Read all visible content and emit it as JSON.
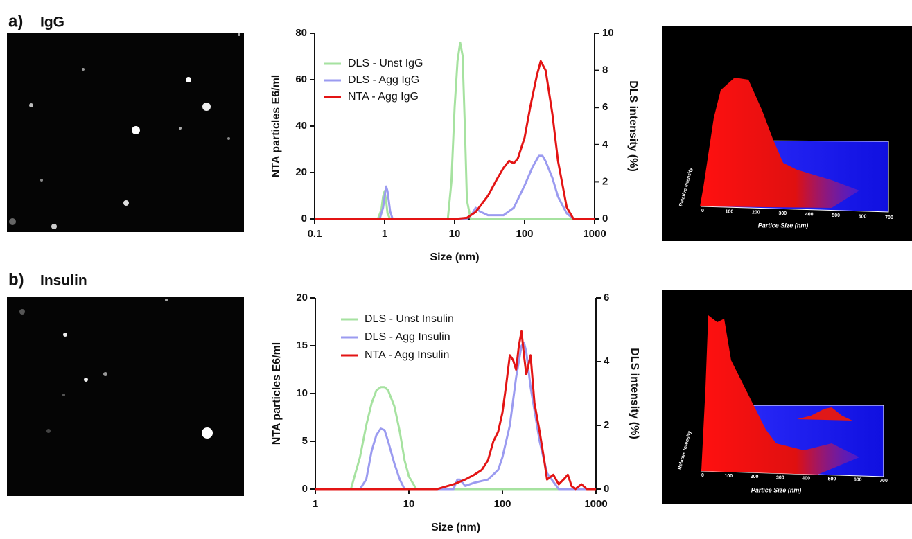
{
  "panels": [
    {
      "label": "a)",
      "title": "IgG",
      "plot3d": {
        "xlabel": "Partice Size (nm)",
        "ylabel": "Relative Intensity",
        "xticks": [
          0,
          100,
          200,
          300,
          400,
          500,
          600,
          700
        ]
      }
    },
    {
      "label": "b)",
      "title": "Insulin",
      "plot3d": {
        "xlabel": "Partice Size (nm)",
        "ylabel": "Relative Intensity",
        "xticks": [
          0,
          100,
          200,
          300,
          400,
          500,
          600,
          700
        ]
      }
    }
  ],
  "chart_data": [
    {
      "type": "line",
      "xscale": "log",
      "xlabel": "Size (nm)",
      "ylabel": "NTA particles E6/ml",
      "y2label": "DLS intensity (%)",
      "xlim": [
        0.1,
        1000
      ],
      "xticks": [
        0.1,
        1,
        10,
        100,
        1000
      ],
      "ylim": [
        0,
        80
      ],
      "yticks": [
        0,
        20,
        40,
        60,
        80
      ],
      "y2lim": [
        0,
        10
      ],
      "y2ticks": [
        0,
        2,
        4,
        6,
        8,
        10
      ],
      "legend": "upper left",
      "series": [
        {
          "name": "DLS - Unst IgG",
          "color": "#a6e2a0",
          "axis": "y2",
          "x": [
            0.1,
            0.8,
            0.9,
            0.95,
            1,
            1.05,
            1.1,
            1.2,
            8,
            9,
            10,
            11,
            12,
            13,
            14,
            15,
            17,
            1000
          ],
          "values": [
            0,
            0,
            0.5,
            1.2,
            1.5,
            1,
            0.3,
            0,
            0,
            2,
            6,
            8.5,
            9.5,
            8.8,
            5,
            1,
            0,
            0
          ]
        },
        {
          "name": "DLS - Agg IgG",
          "color": "#9b9bf0",
          "axis": "y2",
          "x": [
            0.1,
            0.85,
            0.95,
            1.05,
            1.1,
            1.2,
            1.3,
            15,
            18,
            20,
            23,
            30,
            50,
            70,
            100,
            130,
            160,
            180,
            200,
            250,
            300,
            400,
            500,
            1000
          ],
          "values": [
            0,
            0,
            0.6,
            1.75,
            1.5,
            0.4,
            0,
            0,
            0.3,
            0.6,
            0.4,
            0.2,
            0.2,
            0.6,
            1.8,
            2.8,
            3.4,
            3.4,
            3.1,
            2.2,
            1.2,
            0.3,
            0,
            0
          ]
        },
        {
          "name": "NTA - Agg IgG",
          "color": "#e31414",
          "x": [
            0.1,
            10,
            15,
            20,
            30,
            40,
            50,
            60,
            70,
            80,
            100,
            120,
            150,
            170,
            200,
            250,
            300,
            400,
            500,
            1000
          ],
          "values": [
            0,
            0,
            0.5,
            3,
            10,
            17,
            22,
            25,
            24,
            26,
            35,
            48,
            62,
            68,
            64,
            45,
            25,
            5,
            0,
            0
          ]
        }
      ]
    },
    {
      "type": "line",
      "xscale": "log",
      "xlabel": "Size (nm)",
      "ylabel": "NTA particles E6/ml",
      "y2label": "DLS intensity (%)",
      "xlim": [
        1,
        1000
      ],
      "xticks": [
        1,
        10,
        100,
        1000
      ],
      "ylim": [
        0,
        20
      ],
      "yticks": [
        0,
        5,
        10,
        15,
        20
      ],
      "y2lim": [
        0,
        6
      ],
      "y2ticks": [
        0,
        2,
        4,
        6
      ],
      "legend": "upper left",
      "series": [
        {
          "name": "DLS - Unst Insulin",
          "color": "#a6e2a0",
          "axis": "y2",
          "x": [
            1,
            2.4,
            3,
            3.5,
            4,
            4.5,
            5,
            5.5,
            6,
            7,
            8,
            9,
            10,
            12,
            1000
          ],
          "values": [
            0,
            0,
            1,
            2,
            2.7,
            3.1,
            3.2,
            3.2,
            3.1,
            2.6,
            1.8,
            0.9,
            0.4,
            0,
            0
          ]
        },
        {
          "name": "DLS - Agg Insulin",
          "color": "#9b9bf0",
          "axis": "y2",
          "x": [
            1,
            3,
            3.5,
            4,
            4.5,
            5,
            5.5,
            6,
            7,
            8,
            9,
            10,
            30,
            33,
            35,
            40,
            50,
            70,
            90,
            100,
            120,
            140,
            160,
            170,
            180,
            200,
            250,
            300,
            400,
            1000
          ],
          "values": [
            0,
            0,
            0.3,
            1.2,
            1.7,
            1.9,
            1.85,
            1.5,
            0.8,
            0.3,
            0,
            0,
            0,
            0.3,
            0.3,
            0.1,
            0.2,
            0.3,
            0.6,
            1,
            2,
            3.5,
            4.5,
            4.6,
            4.3,
            3.2,
            1.5,
            0.5,
            0,
            0
          ]
        },
        {
          "name": "NTA - Agg Insulin",
          "color": "#e31414",
          "x": [
            1,
            20,
            30,
            40,
            50,
            60,
            70,
            80,
            90,
            100,
            110,
            120,
            130,
            140,
            150,
            160,
            170,
            180,
            190,
            200,
            220,
            250,
            280,
            300,
            350,
            400,
            450,
            500,
            550,
            600,
            700,
            800,
            900,
            1000
          ],
          "values": [
            0,
            0,
            0.5,
            1,
            1.5,
            2,
            3,
            5,
            6,
            8,
            11,
            14,
            13.5,
            12.5,
            15,
            16.5,
            14,
            12,
            13,
            14,
            9,
            6,
            3,
            1,
            1.5,
            0.5,
            1,
            1.5,
            0.3,
            0,
            0.5,
            0,
            0,
            0
          ]
        }
      ]
    }
  ]
}
